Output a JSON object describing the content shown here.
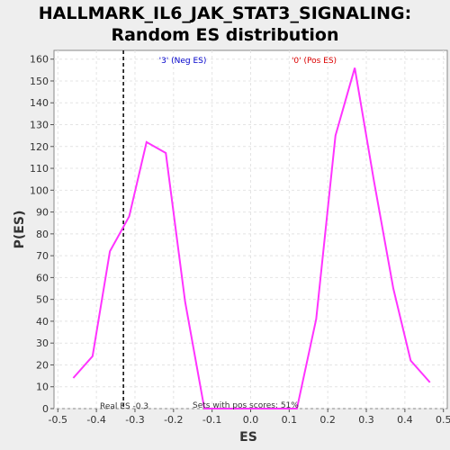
{
  "chart_data": {
    "type": "line",
    "title_line1": "HALLMARK_IL6_JAK_STAT3_SIGNALING:",
    "title_line2": "Random ES distribution",
    "xlabel": "ES",
    "ylabel": "P(ES)",
    "xlim": [
      -0.51,
      0.51
    ],
    "ylim": [
      0,
      164
    ],
    "x_ticks": [
      -0.5,
      -0.4,
      -0.3,
      -0.2,
      -0.1,
      0.0,
      0.1,
      0.2,
      0.3,
      0.4,
      0.5
    ],
    "y_ticks": [
      0,
      10,
      20,
      30,
      40,
      50,
      60,
      70,
      80,
      90,
      100,
      110,
      120,
      130,
      140,
      150,
      160
    ],
    "grid": true,
    "series": [
      {
        "color": "#ff33ff",
        "x": [
          -0.46,
          -0.41,
          -0.365,
          -0.315,
          -0.27,
          -0.22,
          -0.17,
          -0.12,
          -0.05,
          0.03,
          0.12,
          0.17,
          0.22,
          0.27,
          0.32,
          0.37,
          0.415,
          0.465
        ],
        "y": [
          14,
          24,
          72,
          88,
          122,
          117,
          49,
          0,
          0,
          0,
          0,
          41,
          125,
          156,
          104,
          55,
          22,
          12
        ]
      }
    ],
    "real_es": -0.33,
    "neg_label": "'3' (Neg ES)",
    "pos_label": "'0' (Pos ES)",
    "neg_color": "#0000cc",
    "pos_color": "#dd0000",
    "real_es_label": "Real ES -0.3",
    "pos_scores_label": "Sets with pos scores: 51%"
  }
}
